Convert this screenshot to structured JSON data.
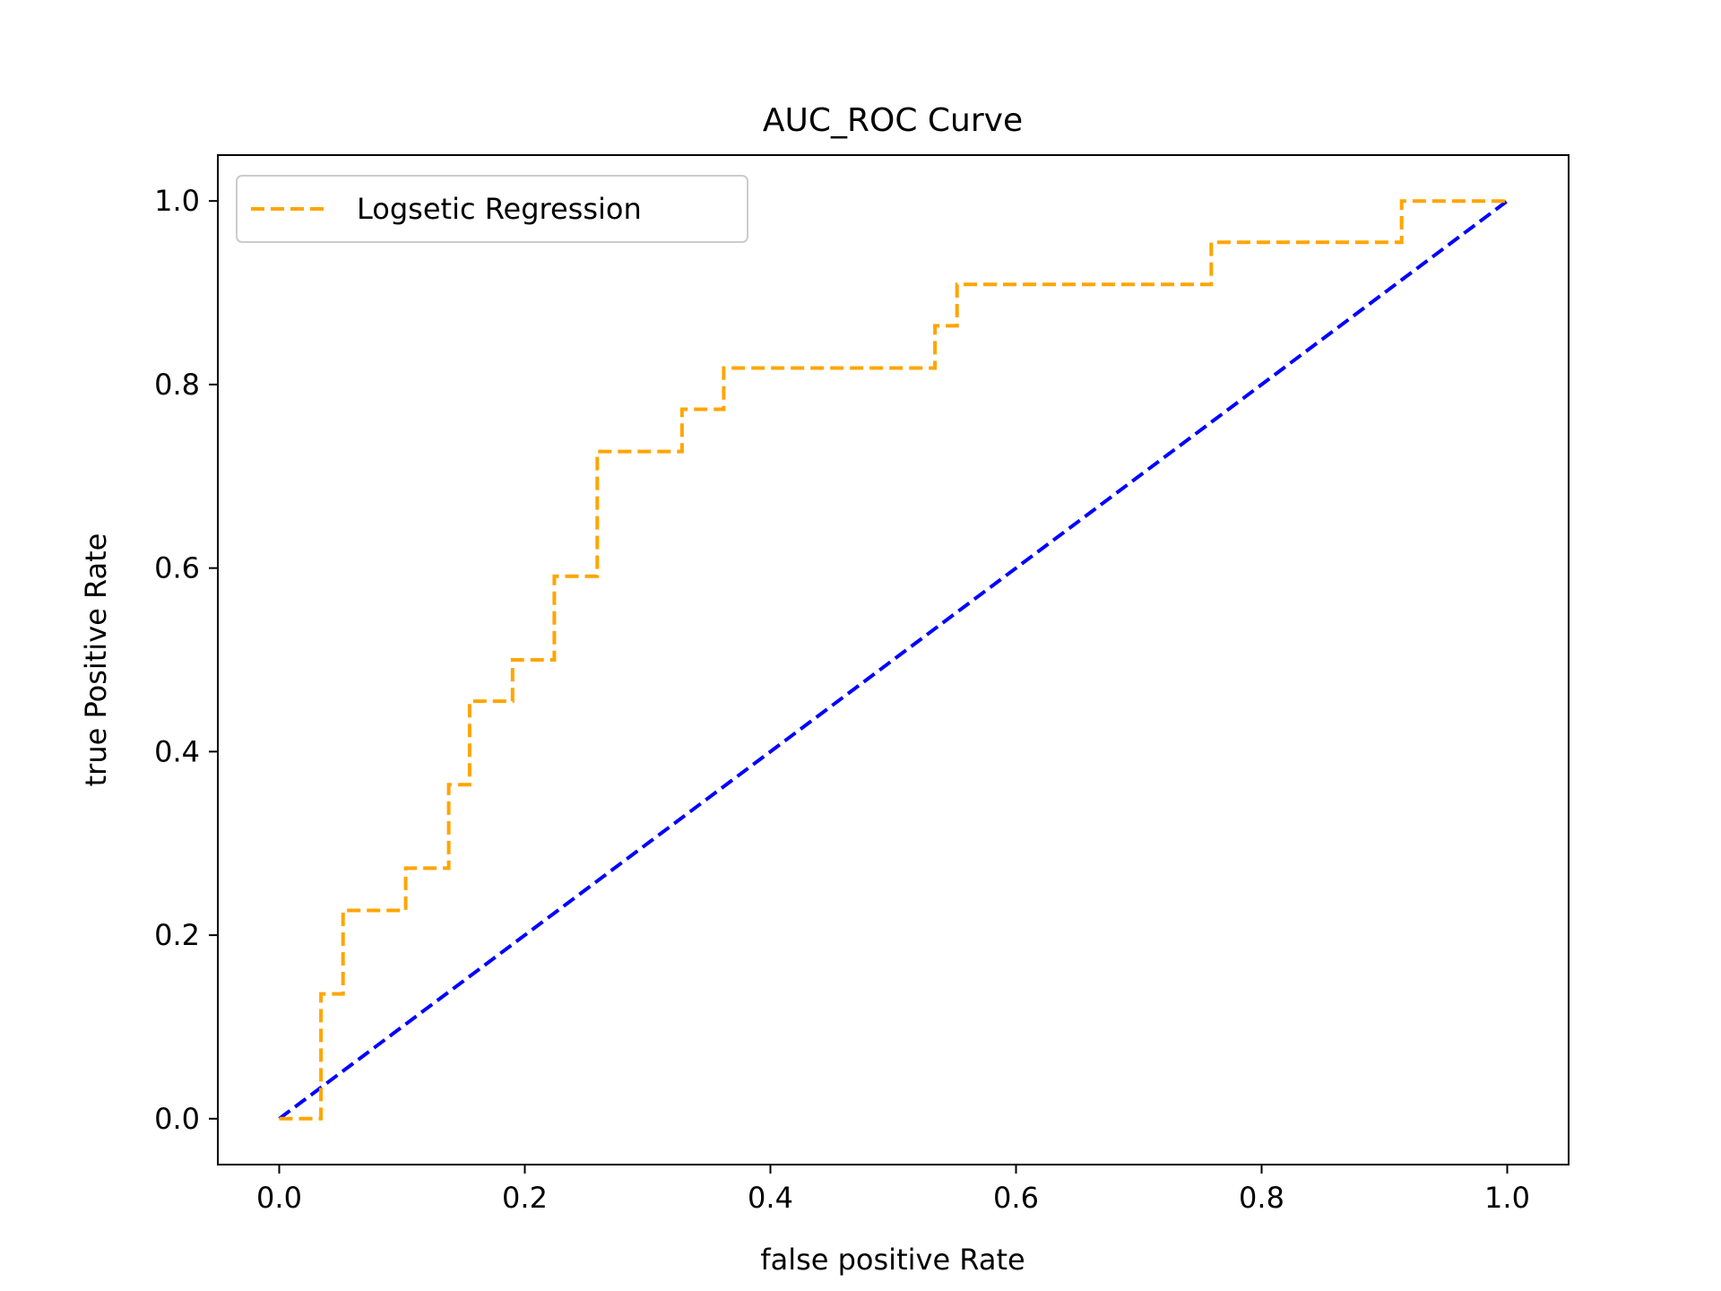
{
  "chart_data": {
    "type": "line",
    "title": "AUC_ROC Curve",
    "xlabel": "false positive Rate",
    "ylabel": "true Positive Rate",
    "xlim": [
      -0.05,
      1.05
    ],
    "ylim": [
      -0.05,
      1.05
    ],
    "xticks": [
      "0.0",
      "0.2",
      "0.4",
      "0.6",
      "0.8",
      "1.0"
    ],
    "yticks": [
      "0.0",
      "0.2",
      "0.4",
      "0.6",
      "0.8",
      "1.0"
    ],
    "grid": false,
    "legend_position": "upper left",
    "series": [
      {
        "name": "Logsetic Regression",
        "color": "#ffa500",
        "style": "dashed",
        "x": [
          0.0,
          0.034,
          0.034,
          0.052,
          0.052,
          0.103,
          0.103,
          0.138,
          0.138,
          0.155,
          0.155,
          0.19,
          0.19,
          0.224,
          0.224,
          0.259,
          0.259,
          0.328,
          0.328,
          0.362,
          0.362,
          0.534,
          0.534,
          0.552,
          0.552,
          0.759,
          0.759,
          0.914,
          0.914,
          1.0
        ],
        "y": [
          0.0,
          0.0,
          0.136,
          0.136,
          0.227,
          0.227,
          0.273,
          0.273,
          0.364,
          0.364,
          0.455,
          0.455,
          0.5,
          0.5,
          0.591,
          0.591,
          0.727,
          0.727,
          0.773,
          0.773,
          0.818,
          0.818,
          0.864,
          0.864,
          0.909,
          0.909,
          0.955,
          0.955,
          1.0,
          1.0
        ]
      },
      {
        "color": "#0000ff",
        "style": "dashed",
        "x": [
          0.0,
          1.0
        ],
        "y": [
          0.0,
          1.0
        ]
      }
    ]
  }
}
